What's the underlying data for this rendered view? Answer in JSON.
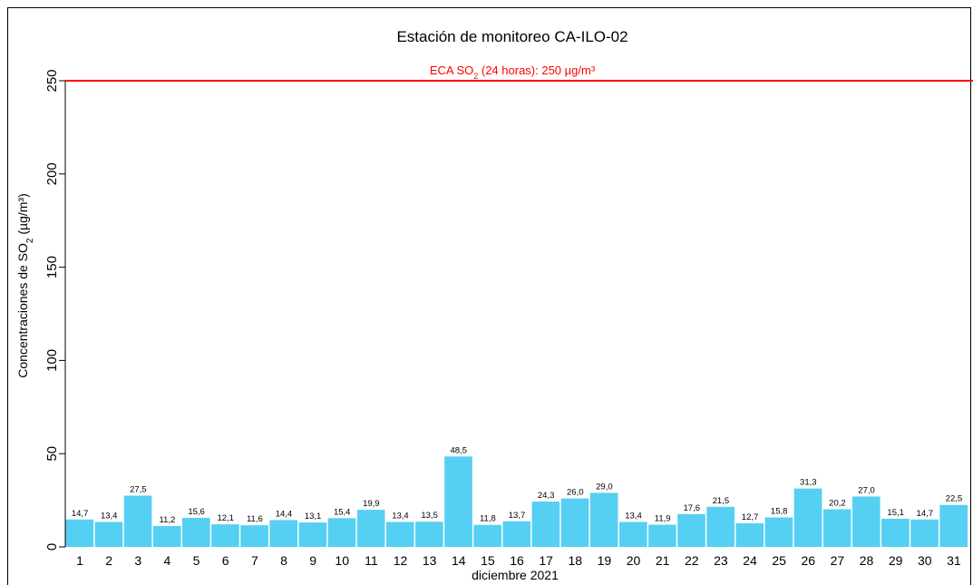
{
  "chart_data": {
    "type": "bar",
    "title": "Estación de monitoreo  CA-ILO-02",
    "x_label": "diciembre 2021",
    "y_label_parts": [
      "Concentraciones de SO",
      "2",
      " (µg/m³)"
    ],
    "categories": [
      "1",
      "2",
      "3",
      "4",
      "5",
      "6",
      "7",
      "8",
      "9",
      "10",
      "11",
      "12",
      "13",
      "14",
      "15",
      "16",
      "17",
      "18",
      "19",
      "20",
      "21",
      "22",
      "23",
      "24",
      "25",
      "26",
      "27",
      "28",
      "29",
      "30",
      "31"
    ],
    "values": [
      14.7,
      13.4,
      27.5,
      11.2,
      15.6,
      12.1,
      11.6,
      14.4,
      13.1,
      15.4,
      19.9,
      13.4,
      13.5,
      48.5,
      11.8,
      13.7,
      24.3,
      26.0,
      29.0,
      13.4,
      11.9,
      17.6,
      21.5,
      12.7,
      15.8,
      31.3,
      20.2,
      27.0,
      15.1,
      14.7,
      22.5
    ],
    "value_labels": [
      "14,7",
      "13,4",
      "27,5",
      "11,2",
      "15,6",
      "12,1",
      "11,6",
      "14,4",
      "13,1",
      "15,4",
      "19,9",
      "13,4",
      "13,5",
      "48,5",
      "11,8",
      "13,7",
      "24,3",
      "26,0",
      "29,0",
      "13,4",
      "11,9",
      "17,6",
      "21,5",
      "12,7",
      "15,8",
      "31,3",
      "20,2",
      "27,0",
      "15,1",
      "14,7",
      "22,5"
    ],
    "color": "#55cff2",
    "ylim": [
      0,
      250
    ],
    "yticks": [
      0,
      50,
      100,
      150,
      200,
      250
    ],
    "reference_line": {
      "value": 250,
      "color": "#ff0000",
      "label_parts": [
        "ECA SO",
        "2",
        " (24 horas): 250 µg/m³"
      ]
    }
  }
}
